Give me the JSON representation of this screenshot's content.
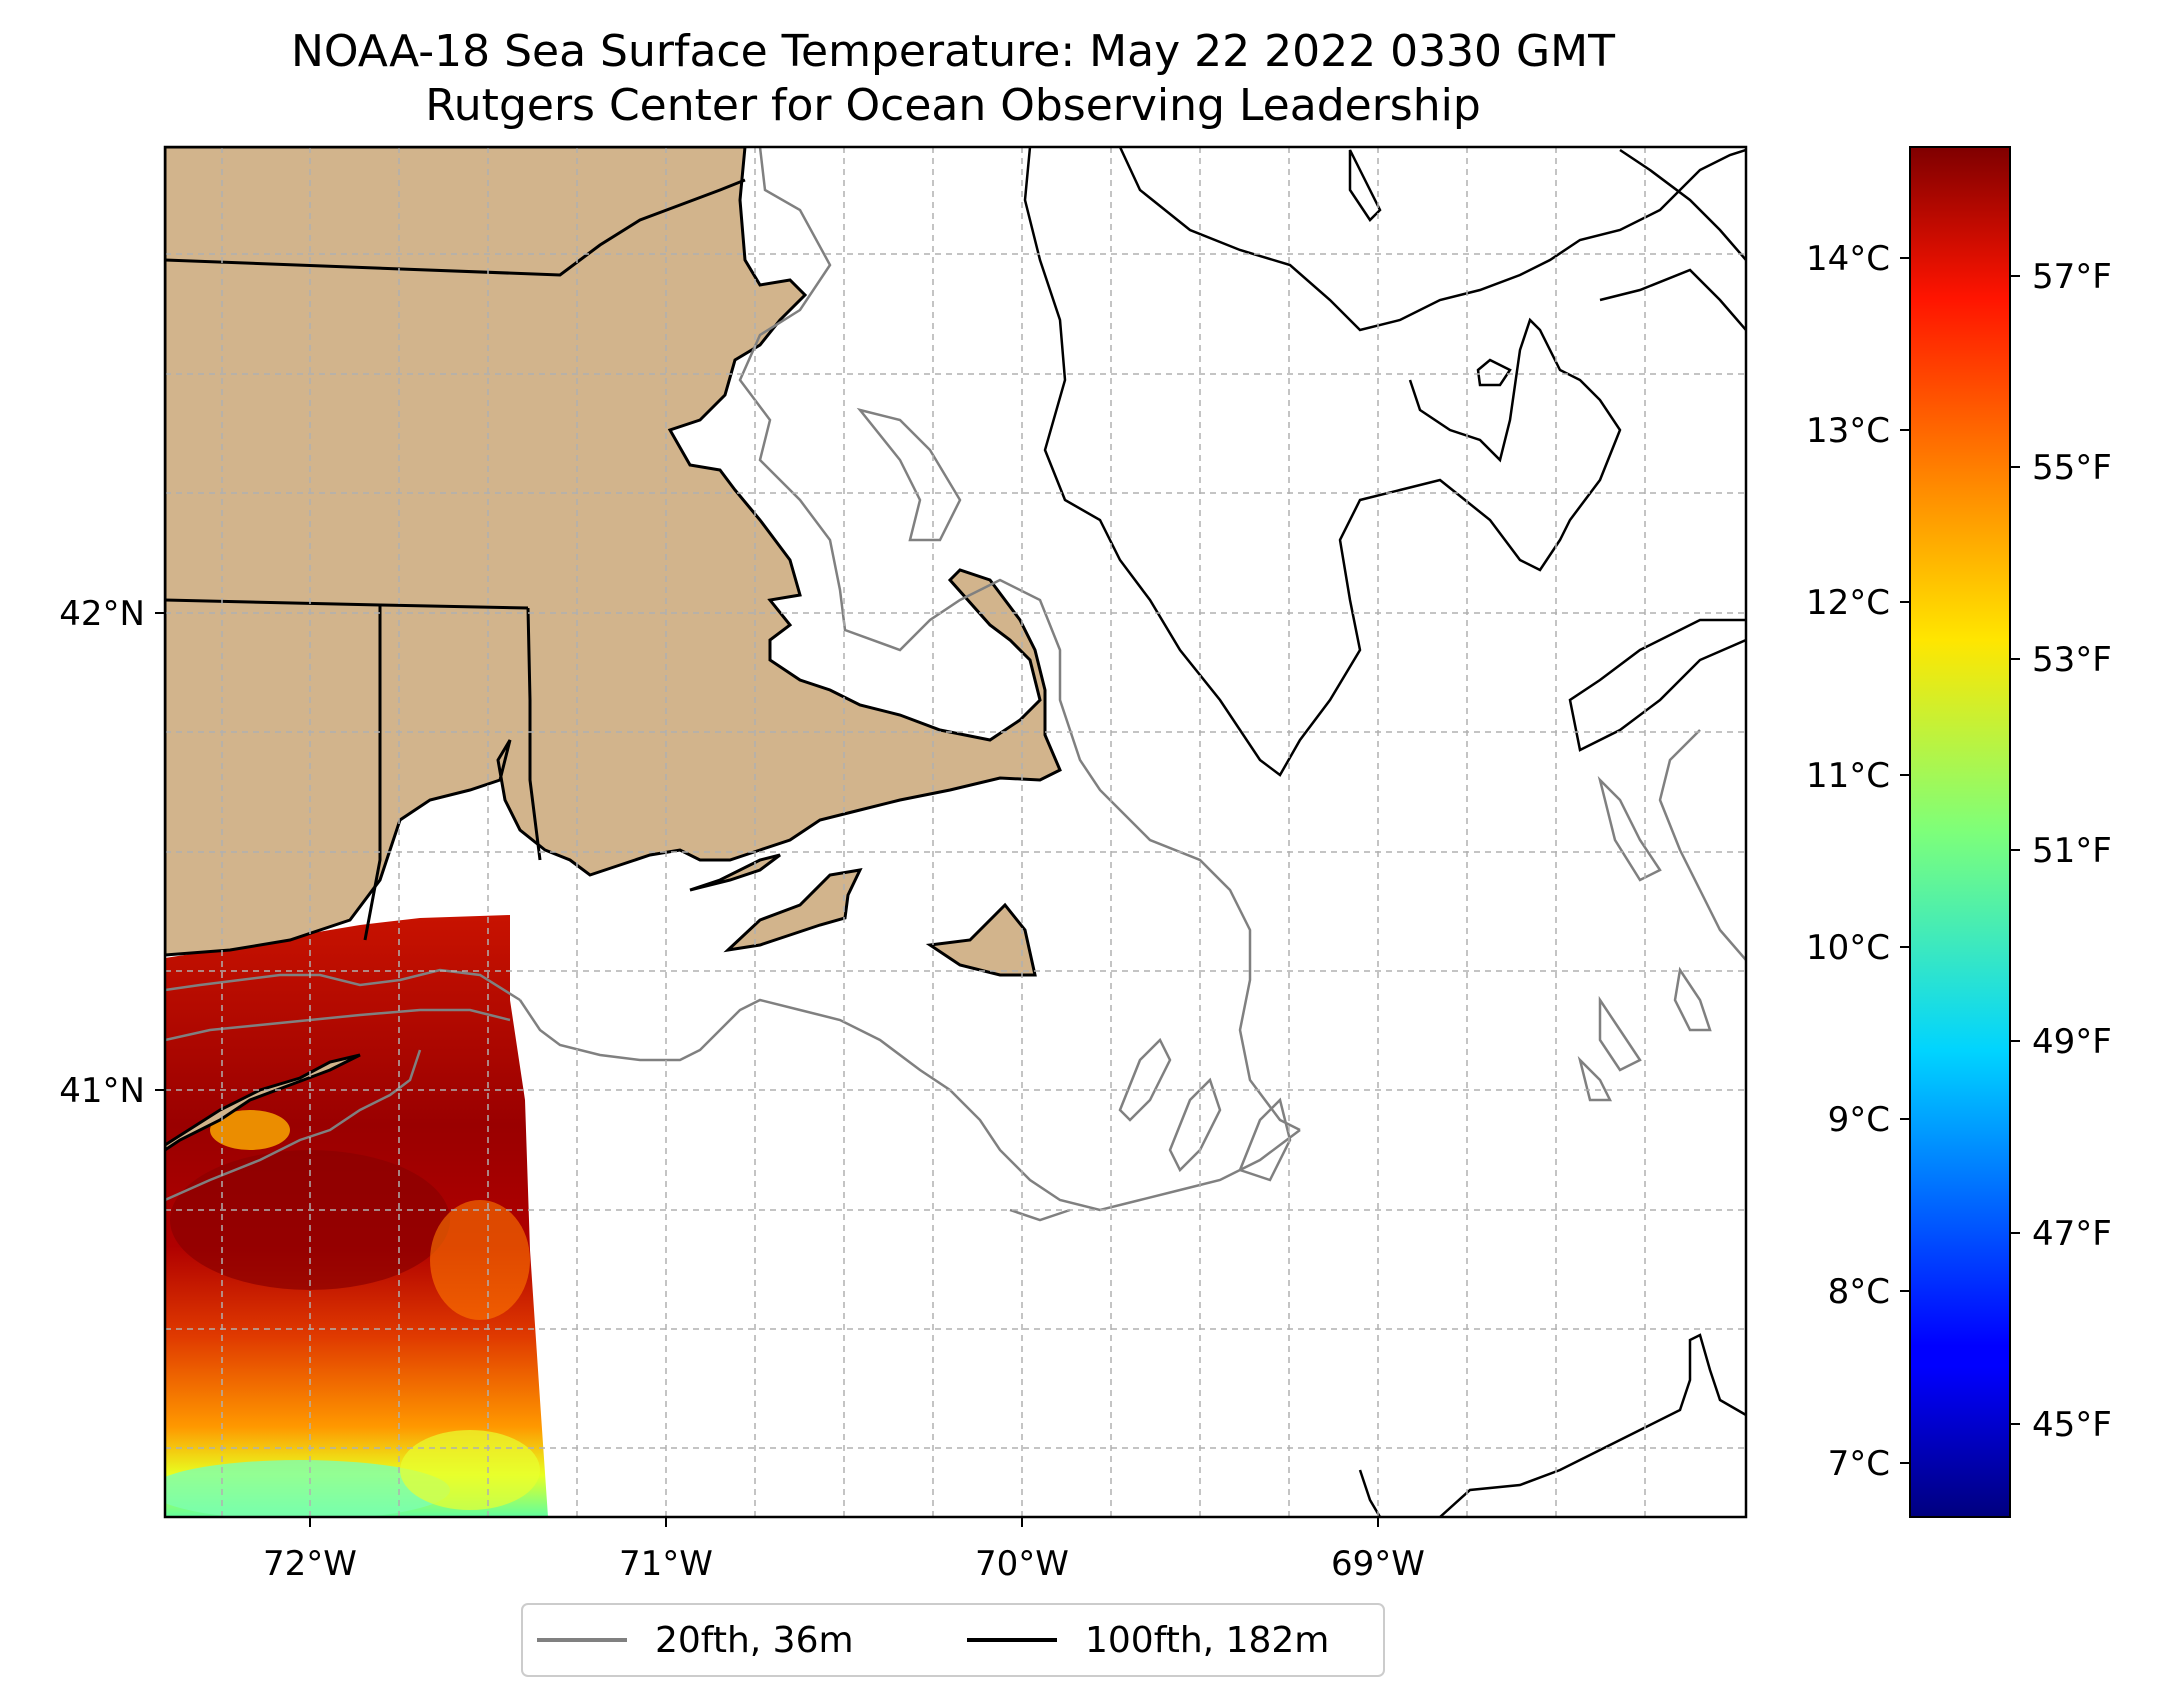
{
  "title": {
    "line1": "NOAA-18 Sea Surface Temperature: May 22 2022 0330 GMT",
    "line2": "Rutgers Center for Ocean Observing Leadership"
  },
  "map": {
    "lon_labels": [
      "72°W",
      "71°W",
      "70°W",
      "69°W"
    ],
    "lat_labels": [
      "42°N",
      "41°N"
    ],
    "land_color": "#d2b48c",
    "grid": true
  },
  "legend": {
    "items": [
      {
        "label": "20fth, 36m",
        "color": "#808080"
      },
      {
        "label": "100fth, 182m",
        "color": "#000000"
      }
    ]
  },
  "colorbar": {
    "celsius_labels": [
      "14°C",
      "13°C",
      "12°C",
      "11°C",
      "10°C",
      "9°C",
      "8°C",
      "7°C"
    ],
    "fahrenheit_labels": [
      "57°F",
      "55°F",
      "53°F",
      "51°F",
      "49°F",
      "47°F",
      "45°F"
    ],
    "colormap": "jet"
  }
}
